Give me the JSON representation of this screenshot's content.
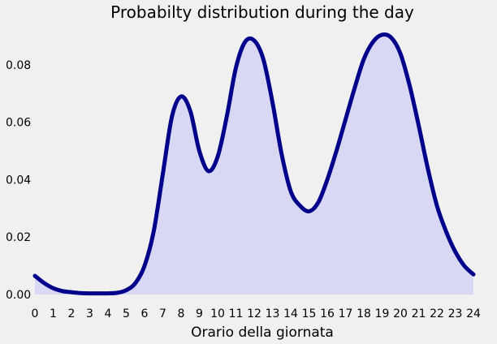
{
  "chart_data": {
    "type": "area",
    "title": "Probabilty distribution during the day",
    "xlabel": "Orario della giornata",
    "ylabel": "",
    "xlim": [
      0,
      24
    ],
    "ylim": [
      0,
      0.093
    ],
    "grid": false,
    "x_ticks": [
      "0",
      "1",
      "2",
      "3",
      "4",
      "5",
      "6",
      "7",
      "8",
      "9",
      "10",
      "11",
      "12",
      "13",
      "14",
      "15",
      "16",
      "17",
      "18",
      "19",
      "20",
      "21",
      "22",
      "23",
      "24"
    ],
    "y_ticks": [
      "0.00",
      "0.02",
      "0.04",
      "0.06",
      "0.08"
    ],
    "y_tick_values": [
      0,
      0.02,
      0.04,
      0.06,
      0.08
    ],
    "series": [
      {
        "x": [
          0,
          0.5,
          1,
          1.5,
          2,
          2.5,
          3,
          3.5,
          4,
          4.5,
          5,
          5.5,
          6,
          6.5,
          7,
          7.5,
          8,
          8.5,
          9,
          9.5,
          10,
          10.5,
          11,
          11.5,
          12,
          12.5,
          13,
          13.5,
          14,
          14.5,
          15,
          15.5,
          16,
          16.5,
          17,
          17.5,
          18,
          18.5,
          19,
          19.5,
          20,
          20.5,
          21,
          21.5,
          22,
          22.5,
          23,
          23.5,
          24
        ],
        "y": [
          0.0065,
          0.004,
          0.0022,
          0.0012,
          0.0008,
          0.0005,
          0.0004,
          0.0004,
          0.0004,
          0.0006,
          0.0015,
          0.004,
          0.01,
          0.022,
          0.042,
          0.062,
          0.069,
          0.064,
          0.05,
          0.043,
          0.048,
          0.062,
          0.079,
          0.088,
          0.0885,
          0.082,
          0.067,
          0.049,
          0.036,
          0.031,
          0.029,
          0.032,
          0.04,
          0.05,
          0.061,
          0.072,
          0.082,
          0.088,
          0.0905,
          0.0895,
          0.084,
          0.073,
          0.059,
          0.044,
          0.031,
          0.022,
          0.015,
          0.01,
          0.007
        ],
        "line_color": "#00008b",
        "fill_color": "#d8d8f4"
      }
    ]
  }
}
